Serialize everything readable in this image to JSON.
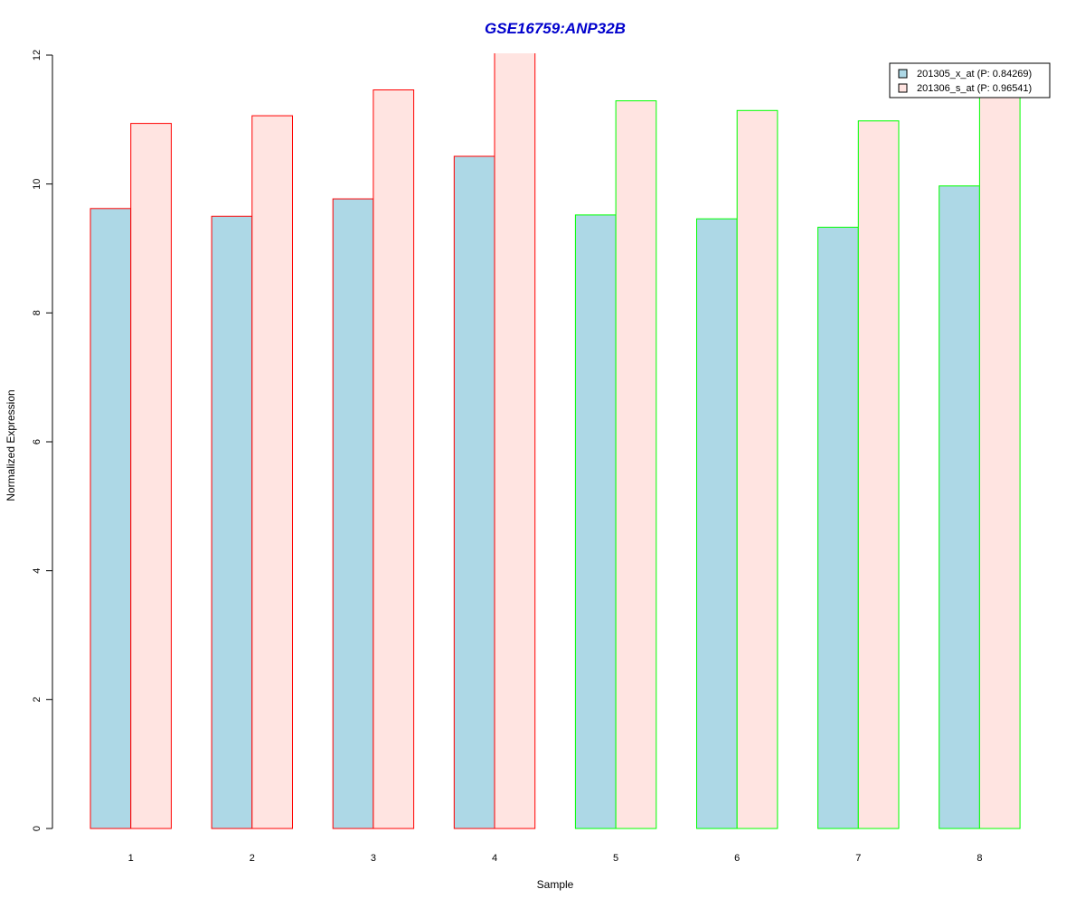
{
  "chart_data": {
    "type": "bar",
    "title": "GSE16759:ANP32B",
    "xlabel": "Sample",
    "ylabel": "Normalized Expression",
    "categories": [
      "1",
      "2",
      "3",
      "4",
      "5",
      "6",
      "7",
      "8"
    ],
    "ylim": [
      0,
      12
    ],
    "yticks": [
      "0",
      "2",
      "4",
      "6",
      "8",
      "10",
      "12"
    ],
    "grid": false,
    "legend_position": "top-right",
    "series": [
      {
        "name": "201305_x_at (P: 0.84269)",
        "fill": "#ADD8E6",
        "values": [
          9.62,
          9.5,
          9.77,
          10.43,
          9.52,
          9.46,
          9.33,
          9.97
        ]
      },
      {
        "name": "201306_s_at (P: 0.96541)",
        "fill": "#FFE4E1",
        "values": [
          10.94,
          11.06,
          11.46,
          12.05,
          11.29,
          11.14,
          10.98,
          11.39
        ]
      }
    ],
    "group_border_colors": [
      "#FF0000",
      "#FF0000",
      "#FF0000",
      "#FF0000",
      "#00FF00",
      "#00FF00",
      "#00FF00",
      "#00FF00"
    ],
    "colors": {
      "title": "#0000CC",
      "axis": "#000000",
      "legend_border": "#000000"
    }
  }
}
